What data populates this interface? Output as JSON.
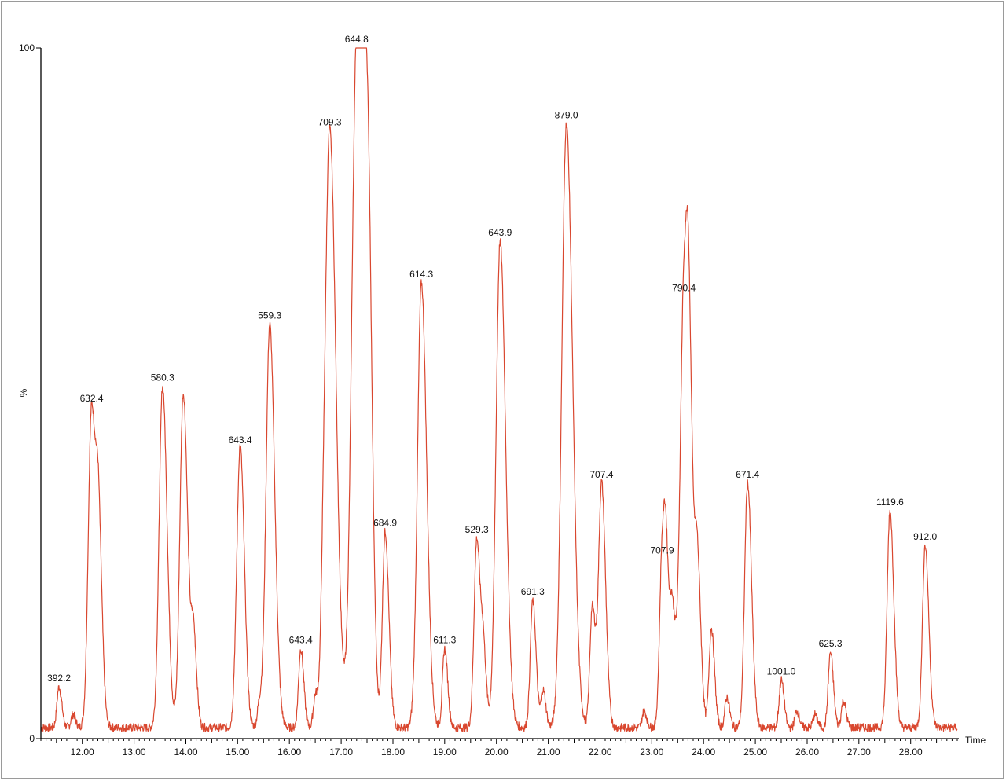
{
  "chart_data": {
    "type": "line",
    "xlabel": "Time",
    "ylabel": "%",
    "xlim": [
      11.2,
      28.9
    ],
    "ylim": [
      0,
      100
    ],
    "x_ticks": [
      "12.00",
      "13.00",
      "14.00",
      "15.00",
      "16.00",
      "17.00",
      "18.00",
      "19.00",
      "20.00",
      "21.00",
      "22.00",
      "23.00",
      "24.00",
      "25.00",
      "26.00",
      "27.00",
      "28.00"
    ],
    "y_ticks": [
      "0",
      "100"
    ],
    "series_color": "#d9472f",
    "baseline": 1.6,
    "peaks": [
      {
        "x": 11.55,
        "y": 7.5,
        "label": "392.2"
      },
      {
        "x": 11.82,
        "y": 3.5,
        "label": ""
      },
      {
        "x": 12.18,
        "y": 48,
        "label": "632.4"
      },
      {
        "x": 12.32,
        "y": 25,
        "label": ""
      },
      {
        "x": 13.55,
        "y": 51,
        "label": "580.3"
      },
      {
        "x": 13.95,
        "y": 50,
        "label": ""
      },
      {
        "x": 14.15,
        "y": 14,
        "label": ""
      },
      {
        "x": 14.95,
        "y": 4.5,
        "label": ""
      },
      {
        "x": 15.05,
        "y": 42,
        "label": "643.4"
      },
      {
        "x": 15.42,
        "y": 5,
        "label": ""
      },
      {
        "x": 15.62,
        "y": 60,
        "label": "559.3"
      },
      {
        "x": 16.22,
        "y": 13,
        "label": "643.4"
      },
      {
        "x": 16.5,
        "y": 6,
        "label": ""
      },
      {
        "x": 16.65,
        "y": 9,
        "label": ""
      },
      {
        "x": 16.78,
        "y": 88,
        "label": "709.3"
      },
      {
        "x": 17.3,
        "y": 100,
        "label": "644.8"
      },
      {
        "x": 17.45,
        "y": 54,
        "label": ""
      },
      {
        "x": 17.55,
        "y": 35,
        "label": ""
      },
      {
        "x": 17.85,
        "y": 30,
        "label": "684.9"
      },
      {
        "x": 18.55,
        "y": 66,
        "label": "614.3"
      },
      {
        "x": 19.0,
        "y": 13,
        "label": "611.3"
      },
      {
        "x": 19.62,
        "y": 29,
        "label": "529.3"
      },
      {
        "x": 19.75,
        "y": 11,
        "label": ""
      },
      {
        "x": 20.07,
        "y": 72,
        "label": "643.9"
      },
      {
        "x": 20.7,
        "y": 20,
        "label": "691.3"
      },
      {
        "x": 20.9,
        "y": 7,
        "label": ""
      },
      {
        "x": 21.35,
        "y": 89,
        "label": "879.0"
      },
      {
        "x": 21.85,
        "y": 19,
        "label": ""
      },
      {
        "x": 22.03,
        "y": 37,
        "label": "707.4"
      },
      {
        "x": 22.85,
        "y": 4,
        "label": ""
      },
      {
        "x": 23.2,
        "y": 26,
        "label": "707.9"
      },
      {
        "x": 23.28,
        "y": 19,
        "label": ""
      },
      {
        "x": 23.4,
        "y": 17,
        "label": ""
      },
      {
        "x": 23.62,
        "y": 64,
        "label": "790.4"
      },
      {
        "x": 23.72,
        "y": 32,
        "label": ""
      },
      {
        "x": 23.88,
        "y": 25,
        "label": ""
      },
      {
        "x": 24.15,
        "y": 16,
        "label": ""
      },
      {
        "x": 24.45,
        "y": 6,
        "label": ""
      },
      {
        "x": 24.85,
        "y": 37,
        "label": "671.4"
      },
      {
        "x": 25.5,
        "y": 8.5,
        "label": "1001.0"
      },
      {
        "x": 25.8,
        "y": 4,
        "label": ""
      },
      {
        "x": 26.15,
        "y": 3.5,
        "label": ""
      },
      {
        "x": 26.45,
        "y": 12.5,
        "label": "625.3"
      },
      {
        "x": 26.7,
        "y": 5.5,
        "label": ""
      },
      {
        "x": 27.6,
        "y": 33,
        "label": "1119.6"
      },
      {
        "x": 28.28,
        "y": 28,
        "label": "912.0"
      }
    ]
  }
}
